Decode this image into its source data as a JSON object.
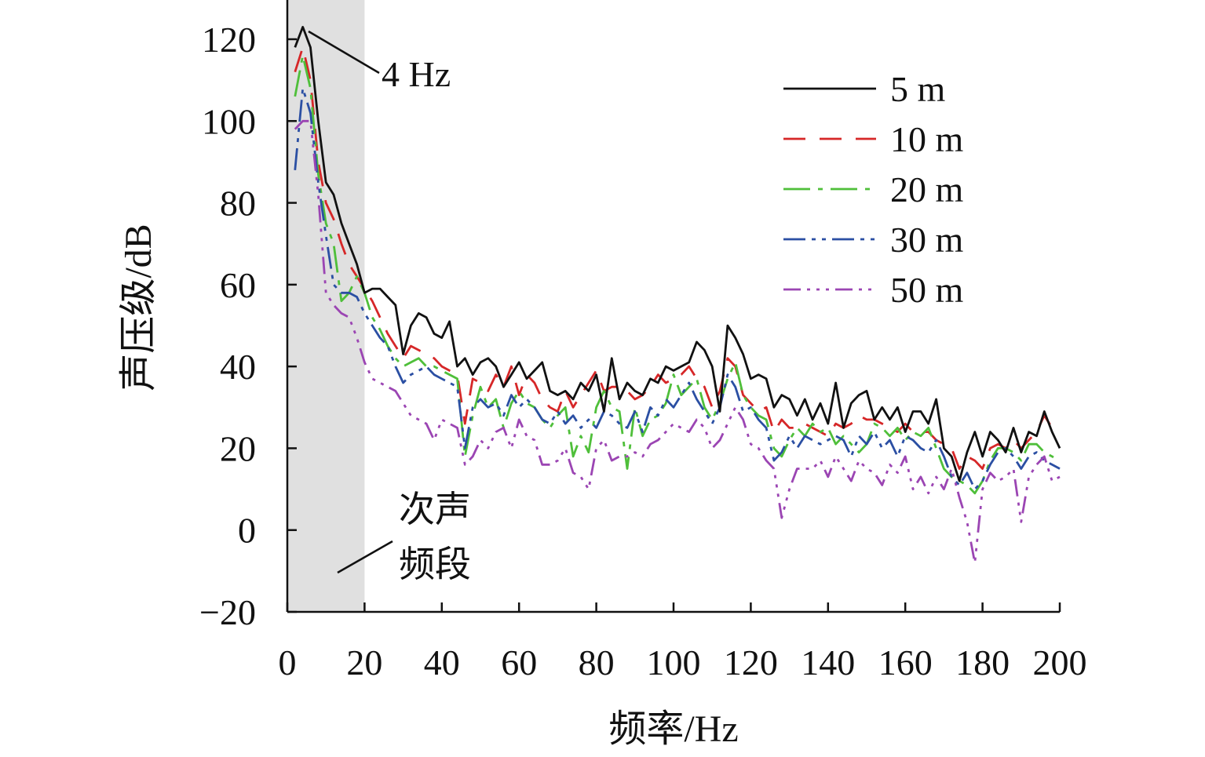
{
  "chart_data": {
    "type": "line",
    "title": "",
    "xlabel": "频率/Hz",
    "ylabel": "声压级/dB",
    "xlim": [
      0,
      200
    ],
    "ylim": [
      -20,
      130
    ],
    "xticks": [
      0,
      20,
      40,
      60,
      80,
      100,
      120,
      140,
      160,
      180,
      200
    ],
    "yticks": [
      -20,
      0,
      20,
      40,
      60,
      80,
      100,
      120
    ],
    "xtick_labels": [
      "0",
      "20",
      "40",
      "60",
      "80",
      "100",
      "120",
      "140",
      "160",
      "180",
      "200"
    ],
    "ytick_labels": [
      "−20",
      "0",
      "20",
      "40",
      "60",
      "80",
      "100",
      "120"
    ],
    "grid": false,
    "legend_position": "top-right",
    "shaded_band": {
      "x_from": 0,
      "x_to": 20,
      "color": "#e0e0e0",
      "label_line1": "次声",
      "label_line2": "频段"
    },
    "annotations": [
      {
        "text": "4 Hz",
        "x": 4,
        "y": 123
      }
    ],
    "series": [
      {
        "name": "5 m",
        "color": "#111111",
        "dash": "solid",
        "x": [
          2,
          4,
          6,
          8,
          10,
          12,
          14,
          16,
          18,
          20,
          22,
          24,
          26,
          28,
          30,
          32,
          34,
          36,
          38,
          40,
          42,
          44,
          46,
          48,
          50,
          52,
          54,
          56,
          58,
          60,
          62,
          64,
          66,
          68,
          70,
          72,
          74,
          76,
          78,
          80,
          82,
          84,
          86,
          88,
          90,
          92,
          94,
          96,
          98,
          100,
          102,
          104,
          106,
          108,
          110,
          112,
          114,
          116,
          118,
          120,
          122,
          124,
          126,
          128,
          130,
          132,
          134,
          136,
          138,
          140,
          142,
          144,
          146,
          148,
          150,
          152,
          154,
          156,
          158,
          160,
          162,
          164,
          166,
          168,
          170,
          172,
          174,
          176,
          178,
          180,
          182,
          184,
          186,
          188,
          190,
          192,
          194,
          196,
          198,
          200
        ],
        "y": [
          118,
          123,
          118,
          100,
          85,
          82,
          75,
          70,
          65,
          58,
          59,
          59,
          57,
          55,
          43,
          50,
          53,
          52,
          48,
          47,
          51,
          40,
          42,
          38,
          41,
          42,
          40,
          35,
          38,
          41,
          37,
          39,
          41,
          34,
          33,
          34,
          32,
          36,
          34,
          38,
          29,
          42,
          32,
          36,
          34,
          33,
          37,
          36,
          40,
          39,
          40,
          41,
          46,
          44,
          40,
          29,
          50,
          47,
          43,
          37,
          38,
          37,
          30,
          33,
          32,
          28,
          32,
          27,
          31,
          26,
          36,
          25,
          31,
          33,
          34,
          27,
          30,
          27,
          30,
          24,
          29,
          29,
          26,
          32,
          20,
          18,
          12,
          19,
          24,
          18,
          24,
          22,
          19,
          25,
          19,
          24,
          23,
          29,
          24,
          20
        ]
      },
      {
        "name": "10 m",
        "color": "#d62728",
        "dash": "28,18",
        "x": [
          2,
          4,
          6,
          8,
          10,
          12,
          14,
          16,
          18,
          20,
          22,
          24,
          26,
          28,
          30,
          32,
          34,
          36,
          38,
          40,
          42,
          44,
          46,
          48,
          50,
          52,
          54,
          56,
          58,
          60,
          62,
          64,
          66,
          68,
          70,
          72,
          74,
          76,
          78,
          80,
          82,
          84,
          86,
          88,
          90,
          92,
          94,
          96,
          98,
          100,
          102,
          104,
          106,
          108,
          110,
          112,
          114,
          116,
          118,
          120,
          122,
          124,
          126,
          128,
          130,
          132,
          134,
          136,
          138,
          140,
          142,
          144,
          146,
          148,
          150,
          152,
          154,
          156,
          158,
          160,
          162,
          164,
          166,
          168,
          170,
          172,
          174,
          176,
          178,
          180,
          182,
          184,
          186,
          188,
          190,
          192,
          194,
          196,
          198,
          200
        ],
        "y": [
          112,
          118,
          110,
          90,
          80,
          76,
          70,
          65,
          62,
          59,
          56,
          52,
          48,
          45,
          42,
          45,
          44,
          43,
          42,
          40,
          39,
          38,
          26,
          37,
          36,
          34,
          38,
          35,
          40,
          33,
          38,
          36,
          32,
          30,
          29,
          34,
          30,
          33,
          36,
          39,
          34,
          35,
          35,
          34,
          32,
          33,
          35,
          38,
          36,
          37,
          38,
          40,
          37,
          35,
          30,
          34,
          42,
          40,
          33,
          31,
          29,
          30,
          24,
          27,
          25,
          25,
          26,
          25,
          24,
          23,
          26,
          25,
          26,
          28,
          27,
          27,
          26,
          25,
          24,
          26,
          24,
          24,
          24,
          22,
          21,
          20,
          15,
          18,
          17,
          15,
          20,
          21,
          20,
          22,
          20,
          22,
          24,
          28,
          25,
          24
        ]
      },
      {
        "name": "20 m",
        "color": "#4fbf3a",
        "dash": "34,10,6,10",
        "x": [
          2,
          4,
          6,
          8,
          10,
          12,
          14,
          16,
          18,
          20,
          22,
          24,
          26,
          28,
          30,
          32,
          34,
          36,
          38,
          40,
          42,
          44,
          46,
          48,
          50,
          52,
          54,
          56,
          58,
          60,
          62,
          64,
          66,
          68,
          70,
          72,
          74,
          76,
          78,
          80,
          82,
          84,
          86,
          88,
          90,
          92,
          94,
          96,
          98,
          100,
          102,
          104,
          106,
          108,
          110,
          112,
          114,
          116,
          118,
          120,
          122,
          124,
          126,
          128,
          130,
          132,
          134,
          136,
          138,
          140,
          142,
          144,
          146,
          148,
          150,
          152,
          154,
          156,
          158,
          160,
          162,
          164,
          166,
          168,
          170,
          172,
          174,
          176,
          178,
          180,
          182,
          184,
          186,
          188,
          190,
          192,
          194,
          196,
          198,
          200
        ],
        "y": [
          106,
          116,
          108,
          87,
          75,
          70,
          56,
          58,
          62,
          58,
          52,
          49,
          45,
          42,
          40,
          41,
          42,
          40,
          40,
          39,
          38,
          37,
          18,
          28,
          35,
          30,
          32,
          25,
          31,
          34,
          31,
          30,
          27,
          25,
          28,
          30,
          18,
          23,
          19,
          30,
          34,
          30,
          29,
          15,
          30,
          23,
          27,
          28,
          31,
          38,
          33,
          35,
          37,
          30,
          27,
          31,
          37,
          41,
          33,
          30,
          28,
          27,
          20,
          18,
          22,
          25,
          23,
          26,
          24,
          25,
          21,
          23,
          21,
          19,
          21,
          26,
          25,
          23,
          25,
          22,
          24,
          23,
          25,
          20,
          15,
          13,
          12,
          11,
          9,
          12,
          17,
          20,
          20,
          19,
          17,
          21,
          21,
          19,
          18,
          17
        ]
      },
      {
        "name": "30 m",
        "color": "#2b4fa3",
        "dash": "28,8,5,8,5,8",
        "x": [
          2,
          4,
          6,
          8,
          10,
          12,
          14,
          16,
          18,
          20,
          22,
          24,
          26,
          28,
          30,
          32,
          34,
          36,
          38,
          40,
          42,
          44,
          46,
          48,
          50,
          52,
          54,
          56,
          58,
          60,
          62,
          64,
          66,
          68,
          70,
          72,
          74,
          76,
          78,
          80,
          82,
          84,
          86,
          88,
          90,
          92,
          94,
          96,
          98,
          100,
          102,
          104,
          106,
          108,
          110,
          112,
          114,
          116,
          118,
          120,
          122,
          124,
          126,
          128,
          130,
          132,
          134,
          136,
          138,
          140,
          142,
          144,
          146,
          148,
          150,
          152,
          154,
          156,
          158,
          160,
          162,
          164,
          166,
          168,
          170,
          172,
          174,
          176,
          178,
          180,
          182,
          184,
          186,
          188,
          190,
          192,
          194,
          196,
          198,
          200
        ],
        "y": [
          88,
          108,
          102,
          85,
          72,
          60,
          58,
          58,
          57,
          53,
          50,
          47,
          45,
          40,
          36,
          38,
          39,
          40,
          38,
          37,
          36,
          35,
          20,
          30,
          32,
          30,
          31,
          28,
          33,
          30,
          32,
          30,
          27,
          26,
          29,
          26,
          28,
          25,
          27,
          25,
          29,
          28,
          26,
          25,
          29,
          24,
          30,
          28,
          32,
          30,
          33,
          36,
          32,
          29,
          26,
          30,
          38,
          35,
          29,
          30,
          27,
          25,
          17,
          19,
          23,
          20,
          23,
          22,
          21,
          22,
          23,
          22,
          18,
          23,
          21,
          24,
          20,
          22,
          18,
          23,
          22,
          20,
          19,
          22,
          18,
          13,
          11,
          14,
          10,
          12,
          16,
          19,
          20,
          18,
          15,
          18,
          19,
          17,
          16,
          15
        ]
      },
      {
        "name": "50 m",
        "color": "#9b45b3",
        "dash": "22,8,4,8,4,8,4,8",
        "x": [
          2,
          4,
          6,
          8,
          10,
          12,
          14,
          16,
          18,
          20,
          22,
          24,
          26,
          28,
          30,
          32,
          34,
          36,
          38,
          40,
          42,
          44,
          46,
          48,
          50,
          52,
          54,
          56,
          58,
          60,
          62,
          64,
          66,
          68,
          70,
          72,
          74,
          76,
          78,
          80,
          82,
          84,
          86,
          88,
          90,
          92,
          94,
          96,
          98,
          100,
          102,
          104,
          106,
          108,
          110,
          112,
          114,
          116,
          118,
          120,
          122,
          124,
          126,
          128,
          130,
          132,
          134,
          136,
          138,
          140,
          142,
          144,
          146,
          148,
          150,
          152,
          154,
          156,
          158,
          160,
          162,
          164,
          166,
          168,
          170,
          172,
          174,
          176,
          178,
          180,
          182,
          184,
          186,
          188,
          190,
          192,
          194,
          196,
          198,
          200
        ],
        "y": [
          98,
          100,
          100,
          82,
          58,
          55,
          53,
          52,
          47,
          41,
          37,
          36,
          35,
          34,
          31,
          28,
          27,
          26,
          22,
          27,
          26,
          25,
          16,
          18,
          22,
          20,
          24,
          25,
          20,
          27,
          23,
          22,
          16,
          16,
          17,
          20,
          14,
          13,
          10,
          20,
          22,
          17,
          18,
          18,
          19,
          18,
          21,
          22,
          24,
          26,
          25,
          24,
          27,
          25,
          20,
          22,
          26,
          30,
          27,
          21,
          20,
          17,
          15,
          3,
          10,
          15,
          15,
          15,
          17,
          13,
          18,
          15,
          12,
          17,
          15,
          14,
          11,
          16,
          14,
          18,
          10,
          13,
          9,
          13,
          10,
          15,
          8,
          2,
          -8,
          10,
          14,
          12,
          13,
          15,
          2,
          13,
          16,
          18,
          12,
          13
        ]
      }
    ]
  }
}
